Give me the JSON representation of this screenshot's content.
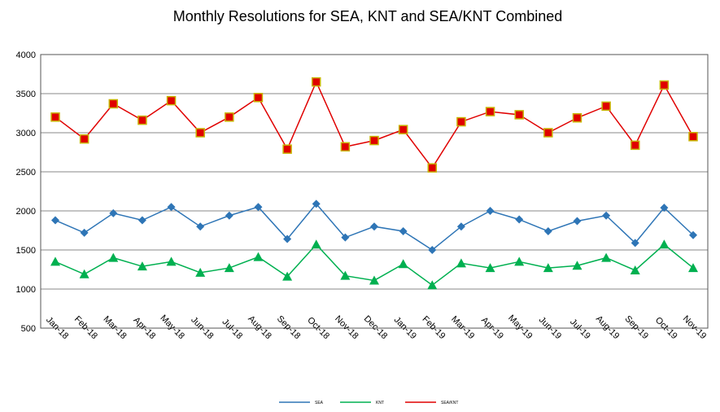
{
  "chart_data": {
    "type": "line",
    "title": "Monthly Resolutions for SEA, KNT and SEA/KNT Combined",
    "categories": [
      "Jan-18",
      "Feb-18",
      "Mar-18",
      "Apr-18",
      "May-18",
      "Jun-18",
      "Jul-18",
      "Aug-18",
      "Sep-18",
      "Oct-18",
      "Nov-18",
      "Dec-18",
      "Jan-19",
      "Feb-19",
      "Mar-19",
      "Apr-19",
      "May-19",
      "Jun-19",
      "Jul-19",
      "Aug-19",
      "Sep-19",
      "Oct-19",
      "Nov-19"
    ],
    "series": [
      {
        "name": "SEA",
        "color": "#2e75b6",
        "marker": "diamond",
        "values": [
          1880,
          1720,
          1970,
          1880,
          2050,
          1800,
          1940,
          2050,
          1640,
          2090,
          1660,
          1800,
          1740,
          1500,
          1800,
          2000,
          1890,
          1740,
          1870,
          1940,
          1590,
          2040,
          1690
        ]
      },
      {
        "name": "KNT",
        "color": "#00b050",
        "marker": "triangle",
        "values": [
          1350,
          1190,
          1400,
          1290,
          1350,
          1210,
          1270,
          1410,
          1160,
          1570,
          1170,
          1110,
          1320,
          1050,
          1330,
          1270,
          1350,
          1270,
          1300,
          1400,
          1240,
          1570,
          1270
        ]
      },
      {
        "name": "SEA/KNT",
        "color": "#e00000",
        "marker": "square",
        "values": [
          3200,
          2920,
          3370,
          3160,
          3410,
          3000,
          3200,
          3450,
          2790,
          3650,
          2820,
          2900,
          3040,
          2550,
          3140,
          3270,
          3230,
          3000,
          3190,
          3340,
          2840,
          3610,
          2950
        ]
      }
    ],
    "ylim": [
      500,
      4000
    ],
    "yticks": [
      500,
      1000,
      1500,
      2000,
      2500,
      3000,
      3500,
      4000
    ],
    "grid": true,
    "legend": "bottom"
  }
}
